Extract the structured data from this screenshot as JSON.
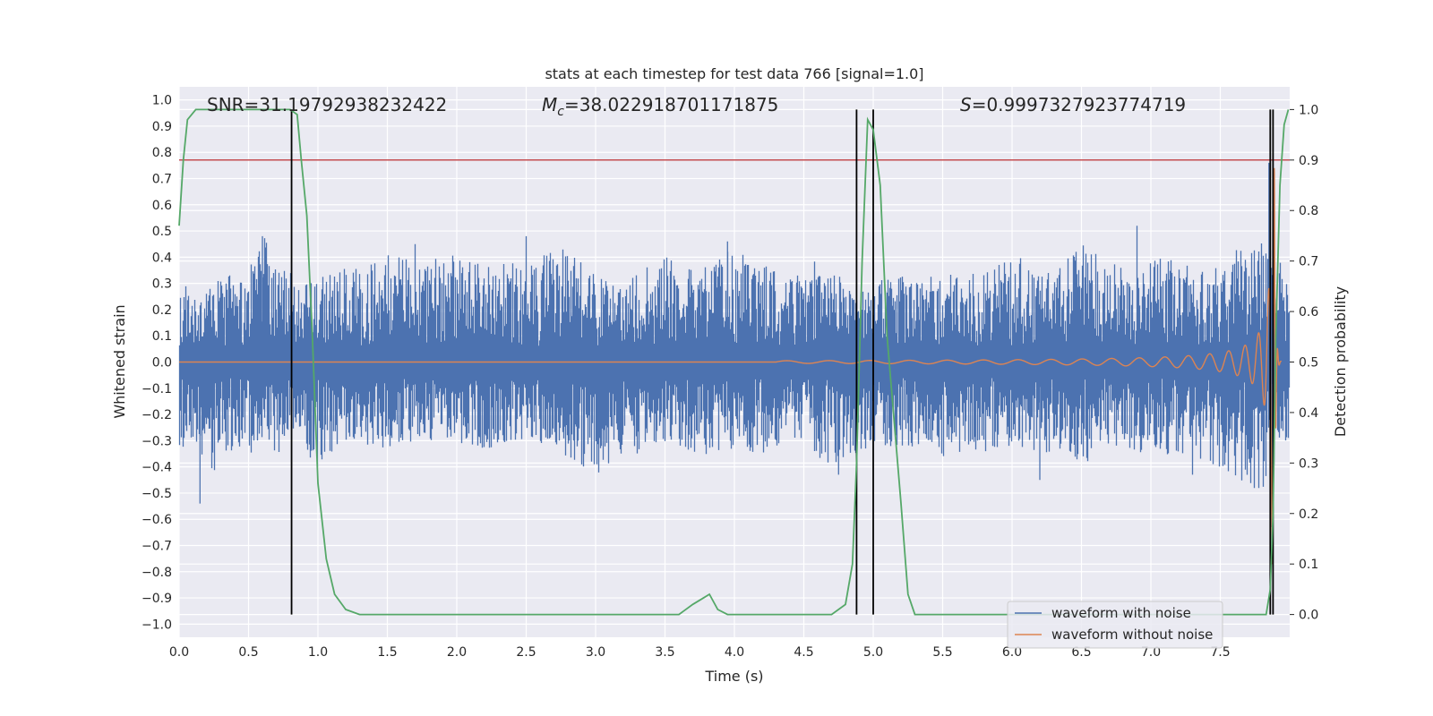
{
  "chart_data": {
    "type": "line",
    "title": "stats at each timestep for test data 766 [signal=1.0]",
    "xlabel": "Time (s)",
    "ylabel": "Whitened strain",
    "y2label": "Detection probability",
    "xlim": [
      0.0,
      8.0
    ],
    "ylim": [
      -1.05,
      1.05
    ],
    "y2lim": [
      -0.045,
      1.045
    ],
    "xticks": [
      "0.0",
      "0.5",
      "1.0",
      "1.5",
      "2.0",
      "2.5",
      "3.0",
      "3.5",
      "4.0",
      "4.5",
      "5.0",
      "5.5",
      "6.0",
      "6.5",
      "7.0",
      "7.5"
    ],
    "yticks": [
      "1.0",
      "0.9",
      "0.8",
      "0.7",
      "0.6",
      "0.5",
      "0.4",
      "0.3",
      "0.2",
      "0.1",
      "0.0",
      "−0.1",
      "−0.2",
      "−0.3",
      "−0.4",
      "−0.5",
      "−0.6",
      "−0.7",
      "−0.8",
      "−0.9",
      "−1.0"
    ],
    "y2ticks": [
      "1.0",
      "0.9",
      "0.8",
      "0.7",
      "0.6",
      "0.5",
      "0.4",
      "0.3",
      "0.2",
      "0.1",
      "0.0"
    ],
    "grid": true,
    "legend_position": "bottom-right",
    "annotations": {
      "snr": "SNR=31.19792938232422",
      "mc_symbol": "M",
      "mc_sub": "c",
      "mc_value": "=38.022918701171875",
      "s_symbol": "S",
      "s_value": "=0.9997327923774719"
    },
    "series": [
      {
        "name": "waveform with noise",
        "color": "#4c72b0",
        "axis": "left",
        "x": [
          0.0,
          0.05,
          0.15,
          0.25,
          0.36,
          0.44,
          0.52,
          0.61,
          0.72,
          0.8,
          0.88,
          0.98,
          1.1,
          1.25,
          1.45,
          1.7,
          1.95,
          2.2,
          2.5,
          2.75,
          3.0,
          3.2,
          3.4,
          3.55,
          3.75,
          3.95,
          4.15,
          4.3,
          4.45,
          4.6,
          4.75,
          4.85,
          5.0,
          5.15,
          5.3,
          5.5,
          5.7,
          5.85,
          6.05,
          6.2,
          6.35,
          6.55,
          6.7,
          6.9,
          7.05,
          7.25,
          7.4,
          7.6,
          7.8,
          7.94
        ],
        "upper": [
          0.28,
          0.3,
          0.24,
          0.3,
          0.38,
          0.35,
          0.42,
          0.48,
          0.36,
          0.35,
          0.3,
          0.32,
          0.35,
          0.36,
          0.44,
          0.38,
          0.42,
          0.37,
          0.38,
          0.45,
          0.33,
          0.32,
          0.37,
          0.41,
          0.34,
          0.46,
          0.38,
          0.35,
          0.34,
          0.4,
          0.33,
          0.28,
          0.3,
          0.34,
          0.33,
          0.33,
          0.35,
          0.37,
          0.44,
          0.35,
          0.36,
          0.52,
          0.38,
          0.34,
          0.4,
          0.38,
          0.36,
          0.43,
          0.47,
          0.4
        ],
        "lower": [
          -0.38,
          -0.28,
          -0.36,
          -0.42,
          -0.35,
          -0.32,
          -0.36,
          -0.3,
          -0.36,
          -0.25,
          -0.28,
          -0.42,
          -0.34,
          -0.3,
          -0.33,
          -0.31,
          -0.3,
          -0.34,
          -0.3,
          -0.35,
          -0.43,
          -0.36,
          -0.34,
          -0.31,
          -0.36,
          -0.33,
          -0.36,
          -0.32,
          -0.3,
          -0.37,
          -0.43,
          -0.38,
          -0.3,
          -0.35,
          -0.32,
          -0.36,
          -0.34,
          -0.35,
          -0.33,
          -0.34,
          -0.36,
          -0.38,
          -0.32,
          -0.34,
          -0.37,
          -0.35,
          -0.38,
          -0.45,
          -0.5,
          -0.35
        ],
        "spikes": [
          [
            0.15,
            -0.54
          ],
          [
            0.6,
            0.48
          ],
          [
            1.7,
            0.45
          ],
          [
            2.5,
            0.48
          ],
          [
            3.95,
            0.46
          ],
          [
            4.75,
            -0.43
          ],
          [
            6.9,
            0.52
          ],
          [
            6.2,
            -0.45
          ],
          [
            7.3,
            -0.43
          ],
          [
            7.85,
            0.76
          ],
          [
            7.87,
            -0.63
          ]
        ]
      },
      {
        "name": "waveform without noise",
        "color": "#dd8452",
        "axis": "left",
        "chirp_start": 4.3,
        "merger_time": 7.89,
        "peak_amplitude": 0.74,
        "peak_negative": -0.86
      },
      {
        "name": "Detection probability",
        "color": "#55a868",
        "axis": "right",
        "x": [
          0.0,
          0.03,
          0.06,
          0.12,
          0.2,
          0.3,
          0.4,
          0.5,
          0.6,
          0.7,
          0.75,
          0.8,
          0.85,
          0.88,
          0.92,
          0.96,
          1.0,
          1.06,
          1.12,
          1.2,
          1.3,
          1.5,
          2.0,
          2.5,
          3.0,
          3.5,
          3.6,
          3.7,
          3.76,
          3.82,
          3.88,
          3.95,
          4.0,
          4.5,
          4.7,
          4.8,
          4.85,
          4.88,
          4.92,
          4.96,
          5.0,
          5.05,
          5.1,
          5.2,
          5.25,
          5.3,
          5.5,
          6.0,
          6.5,
          7.0,
          7.5,
          7.7,
          7.8,
          7.83,
          7.86,
          7.88,
          7.9,
          7.93,
          7.96,
          7.99
        ],
        "y": [
          0.77,
          0.9,
          0.98,
          1.0,
          1.0,
          1.0,
          1.0,
          1.0,
          1.0,
          1.0,
          1.0,
          1.0,
          0.99,
          0.9,
          0.79,
          0.55,
          0.26,
          0.11,
          0.04,
          0.01,
          0.0,
          0.0,
          0.0,
          0.0,
          0.0,
          0.0,
          0.0,
          0.02,
          0.03,
          0.04,
          0.01,
          0.0,
          0.0,
          0.0,
          0.0,
          0.02,
          0.1,
          0.3,
          0.7,
          0.98,
          0.96,
          0.85,
          0.55,
          0.22,
          0.04,
          0.0,
          0.0,
          0.0,
          0.0,
          0.0,
          0.0,
          0.0,
          0.0,
          0.0,
          0.05,
          0.2,
          0.55,
          0.85,
          0.97,
          1.0
        ]
      }
    ],
    "hlines": [
      {
        "axis": "right",
        "y": 0.9,
        "color": "#c44e52"
      }
    ],
    "vlines": [
      {
        "x": 0.81,
        "color": "#000000"
      },
      {
        "x": 4.88,
        "color": "#000000"
      },
      {
        "x": 5.0,
        "color": "#000000"
      },
      {
        "x": 7.86,
        "color": "#000000"
      },
      {
        "x": 7.88,
        "color": "#000000"
      }
    ]
  }
}
